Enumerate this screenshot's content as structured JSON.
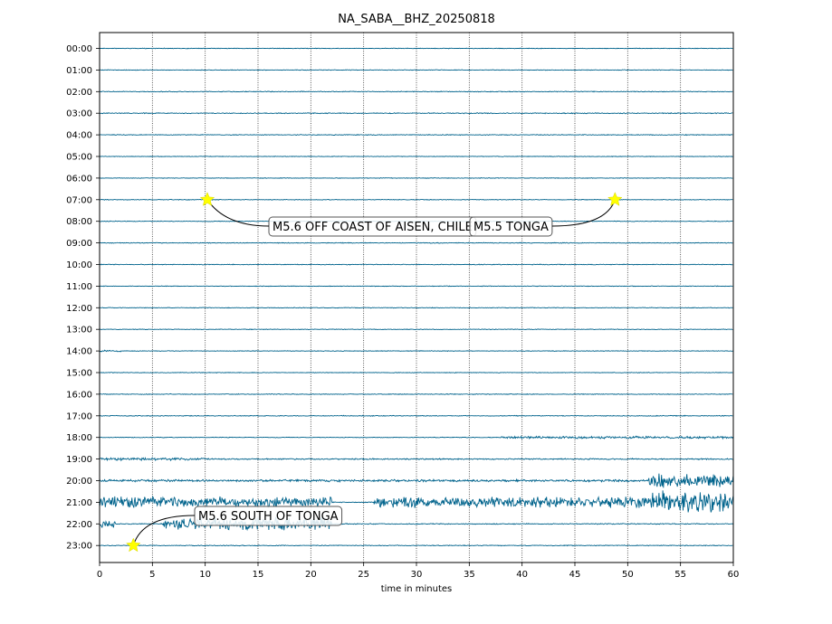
{
  "chart_data": {
    "type": "line",
    "title": "NA_SABA__BHZ_20250818",
    "xlabel": "time in minutes",
    "ylabel": "",
    "xlim": [
      0,
      60
    ],
    "x_ticks": [
      0,
      5,
      10,
      15,
      20,
      25,
      30,
      35,
      40,
      45,
      50,
      55,
      60
    ],
    "y_ticks": [
      "00:00",
      "01:00",
      "02:00",
      "03:00",
      "04:00",
      "05:00",
      "06:00",
      "07:00",
      "08:00",
      "09:00",
      "10:00",
      "11:00",
      "12:00",
      "13:00",
      "14:00",
      "15:00",
      "16:00",
      "17:00",
      "18:00",
      "19:00",
      "20:00",
      "21:00",
      "22:00",
      "23:00"
    ],
    "grid": "vertical dotted",
    "trace_color": "#00638c",
    "noise_segments": [
      {
        "hour": "00:00",
        "segments": [
          [
            0,
            60,
            0.4
          ]
        ]
      },
      {
        "hour": "01:00",
        "segments": [
          [
            0,
            60,
            0.4
          ]
        ]
      },
      {
        "hour": "02:00",
        "segments": [
          [
            0,
            60,
            0.5
          ]
        ]
      },
      {
        "hour": "03:00",
        "segments": [
          [
            0,
            60,
            0.6
          ]
        ]
      },
      {
        "hour": "04:00",
        "segments": [
          [
            0,
            60,
            0.5
          ]
        ]
      },
      {
        "hour": "05:00",
        "segments": [
          [
            0,
            60,
            0.4
          ]
        ]
      },
      {
        "hour": "06:00",
        "segments": [
          [
            0,
            60,
            0.4
          ]
        ]
      },
      {
        "hour": "07:00",
        "segments": [
          [
            0,
            60,
            0.4
          ]
        ]
      },
      {
        "hour": "08:00",
        "segments": [
          [
            0,
            60,
            0.4
          ]
        ]
      },
      {
        "hour": "09:00",
        "segments": [
          [
            0,
            60,
            0.5
          ]
        ]
      },
      {
        "hour": "10:00",
        "segments": [
          [
            0,
            60,
            0.5
          ]
        ]
      },
      {
        "hour": "11:00",
        "segments": [
          [
            0,
            60,
            0.4
          ]
        ]
      },
      {
        "hour": "12:00",
        "segments": [
          [
            0,
            60,
            0.4
          ]
        ]
      },
      {
        "hour": "13:00",
        "segments": [
          [
            0,
            60,
            0.4
          ]
        ]
      },
      {
        "hour": "14:00",
        "segments": [
          [
            0,
            2,
            1.0
          ],
          [
            2,
            60,
            0.4
          ]
        ]
      },
      {
        "hour": "15:00",
        "segments": [
          [
            0,
            60,
            0.4
          ]
        ]
      },
      {
        "hour": "16:00",
        "segments": [
          [
            0,
            60,
            0.5
          ]
        ]
      },
      {
        "hour": "17:00",
        "segments": [
          [
            0,
            60,
            0.5
          ]
        ]
      },
      {
        "hour": "18:00",
        "segments": [
          [
            0,
            38,
            0.4
          ],
          [
            38,
            60,
            1.5
          ]
        ]
      },
      {
        "hour": "19:00",
        "segments": [
          [
            0,
            10,
            1.6
          ],
          [
            10,
            60,
            0.8
          ]
        ]
      },
      {
        "hour": "20:00",
        "segments": [
          [
            0,
            52,
            1.4
          ],
          [
            52,
            60,
            9
          ]
        ]
      },
      {
        "hour": "21:00",
        "segments": [
          [
            0,
            22,
            7
          ],
          [
            22,
            26,
            0.5
          ],
          [
            26,
            52,
            7
          ],
          [
            52,
            60,
            14
          ]
        ]
      },
      {
        "hour": "22:00",
        "segments": [
          [
            0,
            1.5,
            5
          ],
          [
            1.5,
            6,
            0.6
          ],
          [
            6,
            22,
            8
          ],
          [
            22,
            60,
            0.6
          ]
        ]
      },
      {
        "hour": "23:00",
        "segments": [
          [
            0,
            60,
            0.5
          ]
        ]
      }
    ],
    "events": [
      {
        "label": "M5.6 OFF COAST OF AISEN, CHILE",
        "hour": "07:00",
        "minute": 10.2
      },
      {
        "label": "M5.5 TONGA",
        "hour": "07:00",
        "minute": 48.8
      },
      {
        "label": "M5.6 SOUTH OF TONGA",
        "hour": "23:00",
        "minute": 3.2
      }
    ],
    "marker_color": "#ffff00"
  }
}
